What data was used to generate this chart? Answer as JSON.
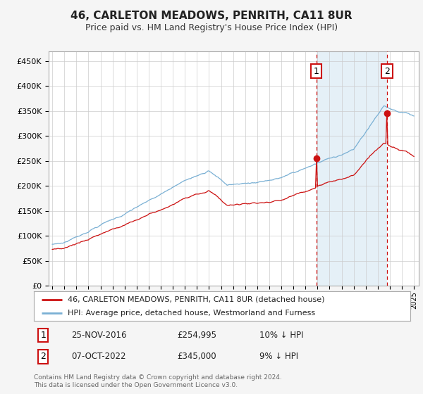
{
  "title": "46, CARLETON MEADOWS, PENRITH, CA11 8UR",
  "subtitle": "Price paid vs. HM Land Registry's House Price Index (HPI)",
  "ytick_values": [
    0,
    50000,
    100000,
    150000,
    200000,
    250000,
    300000,
    350000,
    400000,
    450000
  ],
  "ylim": [
    0,
    470000
  ],
  "sale1_date": "25-NOV-2016",
  "sale1_price": 254995,
  "sale1_x": 2016.9,
  "sale2_date": "07-OCT-2022",
  "sale2_price": 345000,
  "sale2_x": 2022.77,
  "hpi_color": "#7ab0d4",
  "hpi_fill_color": "#daeaf5",
  "price_color": "#cc1111",
  "sale_marker_color": "#cc1111",
  "vline_color": "#cc1111",
  "legend_label_price": "46, CARLETON MEADOWS, PENRITH, CA11 8UR (detached house)",
  "legend_label_hpi": "HPI: Average price, detached house, Westmorland and Furness",
  "annotation1": [
    "1",
    "25-NOV-2016",
    "£254,995",
    "10% ↓ HPI"
  ],
  "annotation2": [
    "2",
    "07-OCT-2022",
    "£345,000",
    "9% ↓ HPI"
  ],
  "footer": "Contains HM Land Registry data © Crown copyright and database right 2024.\nThis data is licensed under the Open Government Licence v3.0.",
  "background_color": "#f5f5f5",
  "plot_background": "#ffffff"
}
